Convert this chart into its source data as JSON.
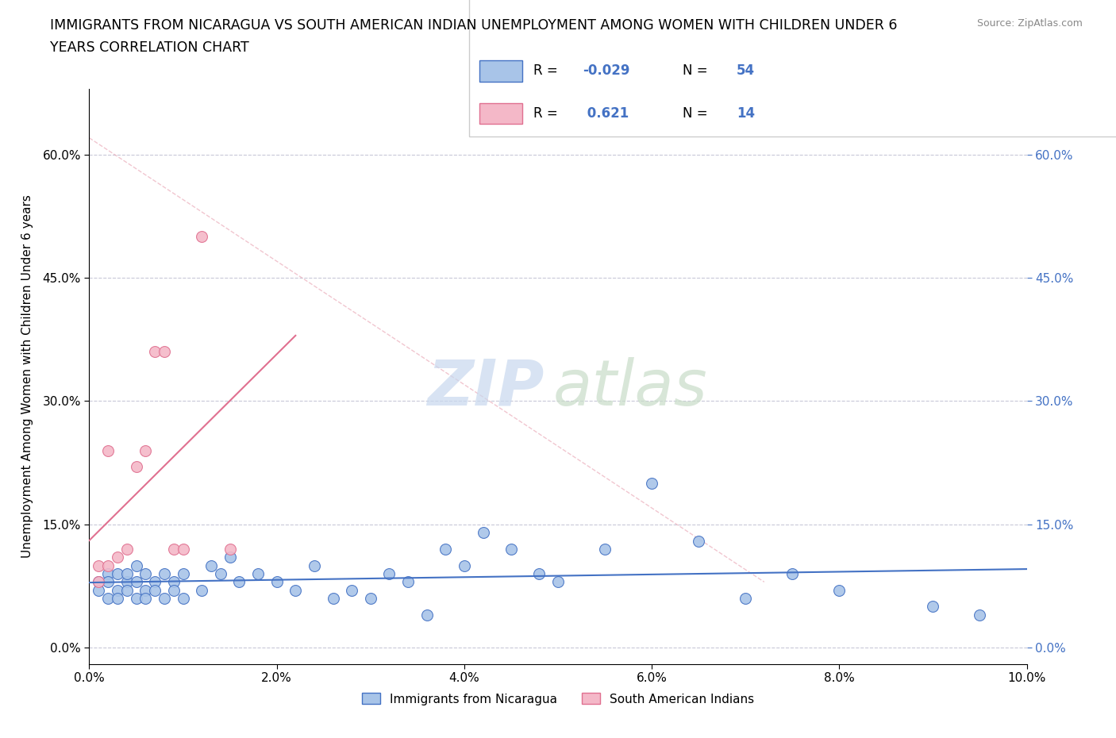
{
  "title_line1": "IMMIGRANTS FROM NICARAGUA VS SOUTH AMERICAN INDIAN UNEMPLOYMENT AMONG WOMEN WITH CHILDREN UNDER 6",
  "title_line2": "YEARS CORRELATION CHART",
  "source": "Source: ZipAtlas.com",
  "ylabel": "Unemployment Among Women with Children Under 6 years",
  "xlim": [
    0.0,
    0.1
  ],
  "ylim": [
    -0.02,
    0.68
  ],
  "xticks": [
    0.0,
    0.02,
    0.04,
    0.06,
    0.08,
    0.1
  ],
  "yticks": [
    0.0,
    0.15,
    0.3,
    0.45,
    0.6
  ],
  "xtick_labels": [
    "0.0%",
    "2.0%",
    "4.0%",
    "6.0%",
    "8.0%",
    "10.0%"
  ],
  "ytick_labels": [
    "0.0%",
    "15.0%",
    "30.0%",
    "45.0%",
    "60.0%"
  ],
  "nicaragua_color": "#a8c4e8",
  "nicaragua_edge_color": "#4472c4",
  "south_american_color": "#f4b8c8",
  "south_american_edge_color": "#e07090",
  "trend_nicaragua_color": "#4472c4",
  "trend_south_american_color": "#e07090",
  "r_nicaragua": -0.029,
  "n_nicaragua": 54,
  "r_south_american": 0.621,
  "n_south_american": 14,
  "legend_label_1": "Immigrants from Nicaragua",
  "legend_label_2": "South American Indians",
  "nicaragua_x": [
    0.001,
    0.001,
    0.002,
    0.002,
    0.002,
    0.003,
    0.003,
    0.003,
    0.004,
    0.004,
    0.004,
    0.005,
    0.005,
    0.005,
    0.006,
    0.006,
    0.006,
    0.007,
    0.007,
    0.008,
    0.008,
    0.009,
    0.009,
    0.01,
    0.01,
    0.012,
    0.013,
    0.014,
    0.015,
    0.016,
    0.018,
    0.02,
    0.022,
    0.024,
    0.026,
    0.028,
    0.03,
    0.032,
    0.034,
    0.036,
    0.038,
    0.04,
    0.042,
    0.045,
    0.048,
    0.05,
    0.055,
    0.06,
    0.065,
    0.07,
    0.075,
    0.08,
    0.09,
    0.095
  ],
  "nicaragua_y": [
    0.08,
    0.07,
    0.09,
    0.06,
    0.08,
    0.07,
    0.09,
    0.06,
    0.08,
    0.07,
    0.09,
    0.06,
    0.08,
    0.1,
    0.07,
    0.09,
    0.06,
    0.08,
    0.07,
    0.09,
    0.06,
    0.08,
    0.07,
    0.06,
    0.09,
    0.07,
    0.1,
    0.09,
    0.11,
    0.08,
    0.09,
    0.08,
    0.07,
    0.1,
    0.06,
    0.07,
    0.06,
    0.09,
    0.08,
    0.04,
    0.12,
    0.1,
    0.14,
    0.12,
    0.09,
    0.08,
    0.12,
    0.2,
    0.13,
    0.06,
    0.09,
    0.07,
    0.05,
    0.04
  ],
  "south_american_x": [
    0.001,
    0.001,
    0.002,
    0.002,
    0.003,
    0.004,
    0.005,
    0.006,
    0.007,
    0.008,
    0.009,
    0.01,
    0.012,
    0.015
  ],
  "south_american_y": [
    0.08,
    0.1,
    0.24,
    0.1,
    0.11,
    0.12,
    0.22,
    0.24,
    0.36,
    0.36,
    0.12,
    0.12,
    0.5,
    0.12
  ]
}
